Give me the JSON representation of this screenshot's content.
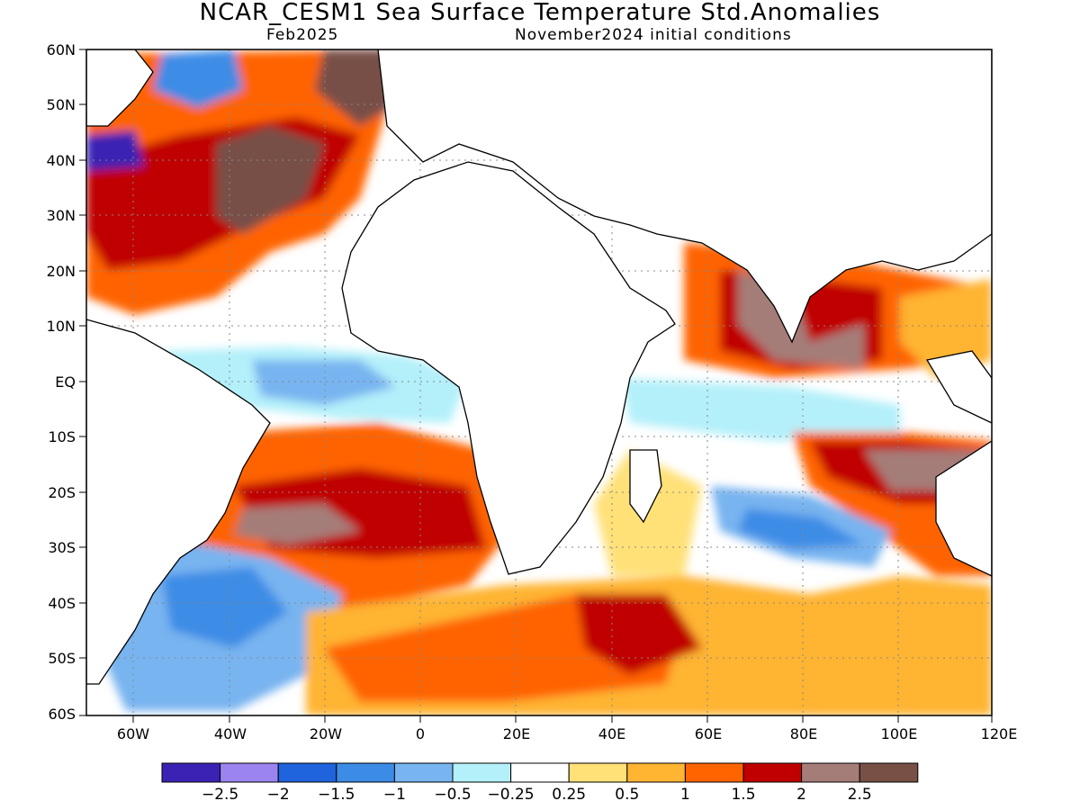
{
  "title": "NCAR_CESM1 Sea Surface Temperature Std.Anomalies",
  "subtitle_left": "Feb2025",
  "subtitle_right": "November2024 initial conditions",
  "lat_labels": [
    "60N",
    "50N",
    "40N",
    "30N",
    "20N",
    "10N",
    "EQ",
    "10S",
    "20S",
    "30S",
    "40S",
    "50S",
    "60S"
  ],
  "lon_labels": [
    "60W",
    "40W",
    "20W",
    "0",
    "20E",
    "40E",
    "60E",
    "80E",
    "100E",
    "120E"
  ],
  "colorbar": {
    "colors": [
      "#3b22b4",
      "#9b83f0",
      "#1f64dc",
      "#3c8ce6",
      "#78b4f0",
      "#b4f0fa",
      "#ffffff",
      "#ffe178",
      "#ffb432",
      "#ff6400",
      "#c00000",
      "#a57d78",
      "#785046"
    ],
    "labels": [
      "-2.5",
      "-2",
      "-1.5",
      "-1",
      "-0.5",
      "-0.25",
      "0.25",
      "0.5",
      "1",
      "1.5",
      "2",
      "2.5"
    ]
  }
}
